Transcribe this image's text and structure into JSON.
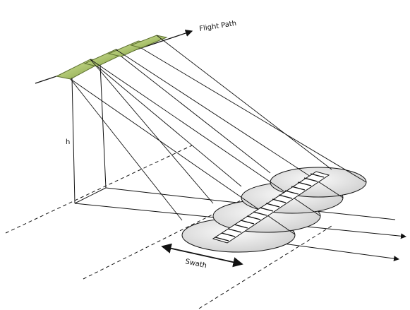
{
  "diagram": {
    "labels": {
      "flight_path": "Flight Path",
      "height": "h",
      "swath": "Swath"
    },
    "colors": {
      "panel_fill": "#a8c06a",
      "panel_edge": "#5d7030",
      "footprint_fill": "#e8e8e8",
      "line": "#111111"
    }
  }
}
